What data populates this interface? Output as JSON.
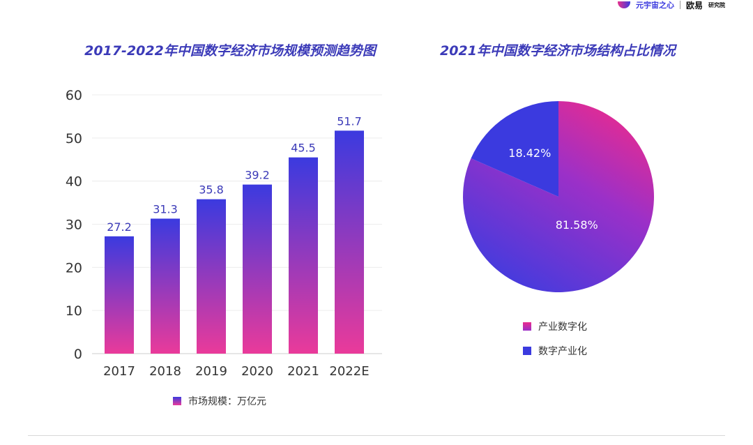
{
  "header": {
    "brand1": "元宇宙之心",
    "brand2": "欧易",
    "brand2_sub": "研究院"
  },
  "chart_data": [
    {
      "type": "bar",
      "title": "2017-2022年中国数字经济市场规模预测趋势图",
      "categories": [
        "2017",
        "2018",
        "2019",
        "2020",
        "2021",
        "2022E"
      ],
      "series": [
        {
          "name": "市场规模：万亿元",
          "values": [
            27.2,
            31.3,
            35.8,
            39.2,
            45.5,
            51.7
          ]
        }
      ],
      "ylim": [
        0,
        60
      ],
      "yticks": [
        0,
        10,
        20,
        30,
        40,
        50,
        60
      ],
      "grid": true,
      "legend": "bottom",
      "colors": {
        "top": "#3b3adf",
        "bottom": "#ea3a9a"
      }
    },
    {
      "type": "pie",
      "title": "2021年中国数字经济市场结构占比情况",
      "slices": [
        {
          "name": "产业数字化",
          "value": 81.58,
          "label": "81.58%",
          "color_start": "#ea2b8e",
          "color_end": "#3d3cdf"
        },
        {
          "name": "数字产业化",
          "value": 18.42,
          "label": "18.42%",
          "color": "#3b3adf"
        }
      ],
      "legend": "bottom"
    }
  ]
}
